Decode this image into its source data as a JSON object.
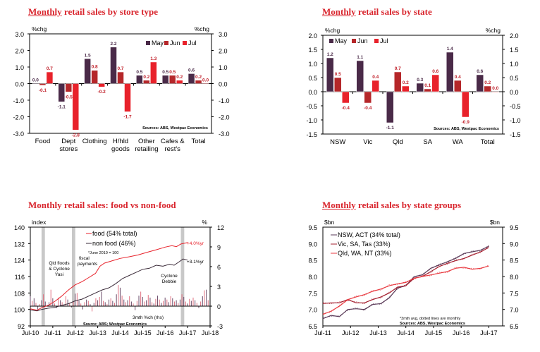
{
  "titles": {
    "c1": {
      "u": "Monthly",
      "rest": " retail sales by store type"
    },
    "c2": {
      "u": "Monthly",
      "rest": " retail sales by state"
    },
    "c3": {
      "u": "",
      "rest": "Monthly retail sales: food vs non-food"
    },
    "c4": {
      "u": "Monthly",
      "rest": " retail sales by state groups"
    }
  },
  "colors": {
    "may": "#4a2a48",
    "jun": "#b5272a",
    "jul": "#e8222b",
    "title": "#d9262e",
    "shade": "#c8c8c8"
  },
  "chart_data": [
    {
      "type": "bar",
      "title": "Monthly retail sales by store type",
      "ylabel_left": "%chg",
      "ylabel_right": "%chg",
      "ylim": [
        -3.0,
        3.0
      ],
      "yticks": [
        "3.0",
        "2.0",
        "1.0",
        "0.0",
        "-1.0",
        "-2.0",
        "-3.0"
      ],
      "categories": [
        [
          "Food"
        ],
        [
          "Dept",
          "stores"
        ],
        [
          "Clothing"
        ],
        [
          "H/hld",
          "goods"
        ],
        [
          "Other",
          "retailing"
        ],
        [
          "Cafes &",
          "rest's"
        ],
        [
          "Total"
        ]
      ],
      "series": [
        {
          "name": "May",
          "values": [
            0.0,
            -1.1,
            1.5,
            2.2,
            0.5,
            0.5,
            0.6
          ]
        },
        {
          "name": "Jun",
          "values": [
            -0.1,
            -0.5,
            0.8,
            0.7,
            0.2,
            0.5,
            0.2
          ]
        },
        {
          "name": "Jul",
          "values": [
            0.7,
            -2.8,
            -0.2,
            -1.7,
            1.3,
            0.2,
            0.0
          ]
        }
      ],
      "legend": "top-right",
      "source": "Sources: ABS, Westpac Economics"
    },
    {
      "type": "bar",
      "title": "Monthly retail sales by state",
      "ylabel_left": "%chg",
      "ylabel_right": "%chg",
      "ylim": [
        -1.5,
        2.0
      ],
      "yticks": [
        "2.0",
        "1.5",
        "1.0",
        "0.5",
        "0.0",
        "-0.5",
        "-1.0",
        "-1.5"
      ],
      "categories": [
        [
          "NSW"
        ],
        [
          "Vic"
        ],
        [
          "Qld"
        ],
        [
          "SA"
        ],
        [
          "WA"
        ],
        [
          "Total"
        ]
      ],
      "series": [
        {
          "name": "May",
          "values": [
            1.2,
            1.1,
            -1.1,
            0.3,
            1.4,
            0.6
          ]
        },
        {
          "name": "Jun",
          "values": [
            0.5,
            -0.4,
            0.7,
            0.1,
            0.4,
            0.2
          ]
        },
        {
          "name": "Jul",
          "values": [
            -0.4,
            0.4,
            0.2,
            0.6,
            -0.9,
            0.0
          ]
        }
      ],
      "legend": "top-left",
      "source": "Sources: ABS, Westpac Economics"
    },
    {
      "type": "line",
      "title": "Monthly retail sales: food vs non-food",
      "ylabel_left": "index",
      "ylabel_right": "%",
      "ylim": [
        92,
        140
      ],
      "ylim_right": [
        -3,
        12
      ],
      "yticks": [
        "140",
        "132",
        "124",
        "116",
        "108",
        "100",
        "92"
      ],
      "yticks_right": [
        "12",
        "9",
        "6",
        "3",
        "0",
        "-3"
      ],
      "xticks": [
        "Jul-10",
        "Jul-11",
        "Jul-12",
        "Jul-13",
        "Jul-14",
        "Jul-15",
        "Jul-16",
        "Jul-17",
        "Jul-18"
      ],
      "xlim": [
        2010.5,
        2018.5
      ],
      "series": [
        {
          "name": "food (54% total)",
          "x": [
            2010.5,
            2010.8,
            2011.0,
            2011.3,
            2011.6,
            2011.9,
            2012.2,
            2012.5,
            2012.8,
            2013.1,
            2013.4,
            2013.6,
            2013.8,
            2014.1,
            2014.5,
            2014.9,
            2015.3,
            2015.7,
            2016.1,
            2016.5,
            2016.8,
            2017.0,
            2017.2,
            2017.5
          ],
          "values": [
            100.3,
            99.6,
            100.8,
            102.0,
            104.0,
            106.5,
            109.5,
            112.0,
            113.5,
            115.5,
            117.5,
            121.0,
            122.5,
            123.5,
            124.8,
            125.6,
            126.5,
            127.8,
            129.0,
            130.3,
            131.0,
            130.5,
            131.8,
            132.5
          ]
        },
        {
          "name": "non food (46%)",
          "x": [
            2010.5,
            2010.8,
            2011.0,
            2011.3,
            2011.6,
            2011.9,
            2012.2,
            2012.5,
            2012.8,
            2013.1,
            2013.4,
            2013.7,
            2014.0,
            2014.3,
            2014.6,
            2014.9,
            2015.2,
            2015.5,
            2015.8,
            2016.1,
            2016.4,
            2016.7,
            2016.9,
            2017.1,
            2017.3,
            2017.5
          ],
          "values": [
            99.8,
            99.3,
            100.0,
            100.6,
            101.0,
            102.0,
            102.8,
            104.2,
            105.0,
            106.5,
            108.0,
            109.5,
            110.5,
            112.5,
            115.0,
            116.5,
            118.0,
            119.5,
            120.0,
            121.5,
            121.0,
            122.0,
            121.5,
            123.0,
            124.5,
            124.0
          ]
        },
        {
          "name": "3mth %ch (rhs)",
          "type": "bar",
          "x_start": 2010.5,
          "x_step": 0.0833,
          "values": [
            1.5,
            0.8,
            1.2,
            0.5,
            -0.5,
            0.3,
            0.9,
            1.8,
            0.7,
            0.2,
            0.6,
            2.5,
            1.2,
            0.4,
            -0.3,
            1.3,
            0.9,
            0.6,
            0.2,
            1.5,
            1.0,
            0.4,
            -0.2,
            0.7,
            1.9,
            2.0,
            0.8,
            0.4,
            -0.5,
            0.6,
            1.0,
            0.8,
            0.3,
            -0.8,
            0.5,
            1.2,
            0.9,
            1.4,
            2.2,
            0.8,
            0.6,
            0.3,
            1.0,
            1.2,
            0.8,
            0.5,
            1.8,
            3.2,
            2.8,
            1.6,
            1.0,
            0.6,
            0.9,
            1.5,
            0.7,
            0.4,
            -0.6,
            0.8,
            1.6,
            2.2,
            1.4,
            0.7,
            0.9,
            1.7,
            1.3,
            0.6,
            0.4,
            1.1,
            1.6,
            1.0,
            0.5,
            0.8,
            1.3,
            1.0,
            0.6,
            1.5,
            1.2,
            0.7,
            0.9,
            0.5,
            1.0,
            1.8,
            1.4,
            0.7,
            0.4,
            1.1,
            0.8,
            1.3,
            0.9,
            0.5,
            -0.3,
            0.7,
            1.5,
            2.4,
            2.5,
            0.9
          ]
        }
      ],
      "shaded_periods": [
        [
          2011.0,
          2011.15
        ],
        [
          2012.35,
          2012.5
        ],
        [
          2017.2,
          2017.35
        ]
      ],
      "annotations": [
        "Qld floods & Cyclone Yasi",
        "fiscal payments",
        "*June 2010 = 100",
        "Cyclone Debbie",
        "3mth %ch (rhs)",
        "+4.0%yr",
        "+3.1%yr"
      ],
      "source": "Source: ABS; Westpac Economics"
    },
    {
      "type": "line",
      "title": "Monthly retail sales by state groups",
      "ylabel_left": "$bn",
      "ylabel_right": "$bn",
      "ylim": [
        6.5,
        9.5
      ],
      "yticks": [
        "9.5",
        "9.0",
        "8.5",
        "8.0",
        "7.5",
        "7.0",
        "6.5"
      ],
      "xticks": [
        "Jul-11",
        "Jul-12",
        "Jul-13",
        "Jul-14",
        "Jul-15",
        "Jul-16",
        "Jul-17"
      ],
      "xlim": [
        2011.5,
        2018.0
      ],
      "series": [
        {
          "name": "NSW, ACT (34% total)",
          "x": [
            2011.5,
            2011.8,
            2012.1,
            2012.4,
            2012.7,
            2013.0,
            2013.3,
            2013.6,
            2013.9,
            2014.2,
            2014.5,
            2014.8,
            2015.1,
            2015.4,
            2015.7,
            2016.0,
            2016.3,
            2016.6,
            2016.9,
            2017.2,
            2017.5
          ],
          "values": [
            6.72,
            6.82,
            6.78,
            7.0,
            7.02,
            7.0,
            7.15,
            7.18,
            7.35,
            7.65,
            7.72,
            8.0,
            8.05,
            8.25,
            8.35,
            8.45,
            8.55,
            8.7,
            8.75,
            8.8,
            8.92
          ]
        },
        {
          "name": "Vic, SA, Tas (33%)",
          "x": [
            2011.5,
            2011.8,
            2012.1,
            2012.4,
            2012.7,
            2013.0,
            2013.3,
            2013.6,
            2013.9,
            2014.2,
            2014.5,
            2014.8,
            2015.1,
            2015.4,
            2015.7,
            2016.0,
            2016.3,
            2016.6,
            2016.9,
            2017.2,
            2017.5
          ],
          "values": [
            7.18,
            7.2,
            7.2,
            7.3,
            7.2,
            7.2,
            7.3,
            7.38,
            7.5,
            7.68,
            7.72,
            7.95,
            8.0,
            8.15,
            8.3,
            8.4,
            8.48,
            8.55,
            8.65,
            8.75,
            8.88
          ]
        },
        {
          "name": "Qld, WA, NT (33%)",
          "x": [
            2011.5,
            2011.8,
            2012.1,
            2012.4,
            2012.7,
            2013.0,
            2013.3,
            2013.6,
            2013.9,
            2014.2,
            2014.5,
            2014.8,
            2015.1,
            2015.4,
            2015.7,
            2016.0,
            2016.3,
            2016.6,
            2016.9,
            2017.2,
            2017.5
          ],
          "values": [
            6.85,
            6.95,
            7.1,
            7.3,
            7.38,
            7.45,
            7.55,
            7.62,
            7.72,
            7.78,
            7.82,
            7.95,
            8.0,
            8.05,
            8.1,
            8.15,
            8.25,
            8.28,
            8.22,
            8.25,
            8.32
          ]
        }
      ],
      "annotations": [
        "*3mth avg, dotted lines are monthly",
        "Sources: ABS, Westpac Economics"
      ]
    }
  ]
}
